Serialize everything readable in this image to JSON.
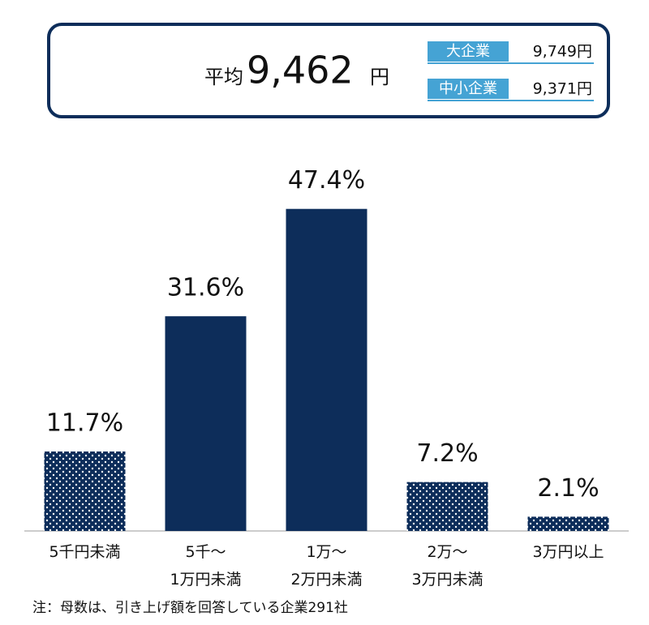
{
  "summary": {
    "prefix": "平均",
    "value": "9,462",
    "unit": "円",
    "breakdown": [
      {
        "label": "大企業",
        "value": "9,749円"
      },
      {
        "label": "中小企業",
        "value": "9,371円"
      }
    ]
  },
  "chart_data": {
    "type": "bar",
    "categories": [
      "5千円未満",
      "5千～\n1万円未満",
      "1万～\n2万円未満",
      "2万～\n3万円未満",
      "3万円以上"
    ],
    "values": [
      11.7,
      31.6,
      47.4,
      7.2,
      2.1
    ],
    "value_labels": [
      "11.7%",
      "31.6%",
      "47.4%",
      "7.2%",
      "2.1%"
    ],
    "styles": [
      "dotted",
      "solid",
      "solid",
      "dotted",
      "dotted"
    ],
    "color": "#0d2d5a",
    "ylim": [
      0,
      55
    ]
  },
  "note": "注：母数は、引き上げ額を回答している企業291社"
}
